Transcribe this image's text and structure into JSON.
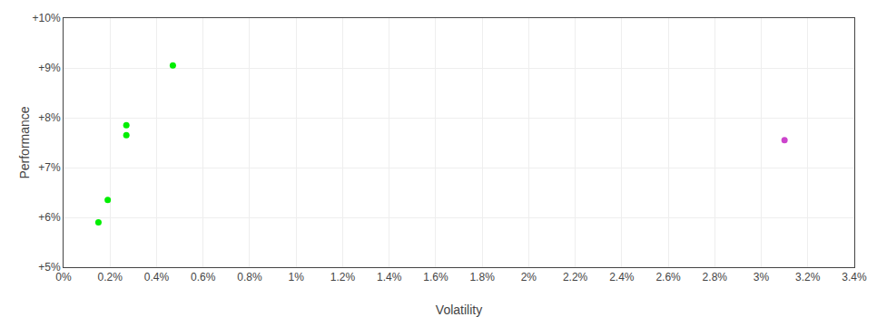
{
  "chart_data": {
    "type": "scatter",
    "xlabel": "Volatility",
    "ylabel": "Performance",
    "xlim": [
      0,
      0.034
    ],
    "ylim": [
      0.05,
      0.1
    ],
    "xticks": [
      {
        "value": 0,
        "label": "0%"
      },
      {
        "value": 0.002,
        "label": "0.2%"
      },
      {
        "value": 0.004,
        "label": "0.4%"
      },
      {
        "value": 0.006,
        "label": "0.6%"
      },
      {
        "value": 0.008,
        "label": "0.8%"
      },
      {
        "value": 0.01,
        "label": "1%"
      },
      {
        "value": 0.012,
        "label": "1.2%"
      },
      {
        "value": 0.014,
        "label": "1.4%"
      },
      {
        "value": 0.016,
        "label": "1.6%"
      },
      {
        "value": 0.018,
        "label": "1.8%"
      },
      {
        "value": 0.02,
        "label": "2%"
      },
      {
        "value": 0.022,
        "label": "2.2%"
      },
      {
        "value": 0.024,
        "label": "2.4%"
      },
      {
        "value": 0.026,
        "label": "2.6%"
      },
      {
        "value": 0.028,
        "label": "2.8%"
      },
      {
        "value": 0.03,
        "label": "3%"
      },
      {
        "value": 0.032,
        "label": "3.2%"
      },
      {
        "value": 0.034,
        "label": "3.4%"
      }
    ],
    "yticks": [
      {
        "value": 0.05,
        "label": "+5%"
      },
      {
        "value": 0.06,
        "label": "+6%"
      },
      {
        "value": 0.07,
        "label": "+7%"
      },
      {
        "value": 0.08,
        "label": "+8%"
      },
      {
        "value": 0.09,
        "label": "+9%"
      },
      {
        "value": 0.1,
        "label": "+10%"
      }
    ],
    "grid": true,
    "series": [
      {
        "color": "#00ee00",
        "x": [
          0.0047,
          0.0027,
          0.0027,
          0.0019,
          0.0015
        ],
        "values": [
          0.0905,
          0.0785,
          0.0765,
          0.0635,
          0.059
        ]
      },
      {
        "color": "#cc44cc",
        "x": [
          0.031
        ],
        "values": [
          0.0755
        ]
      }
    ]
  }
}
